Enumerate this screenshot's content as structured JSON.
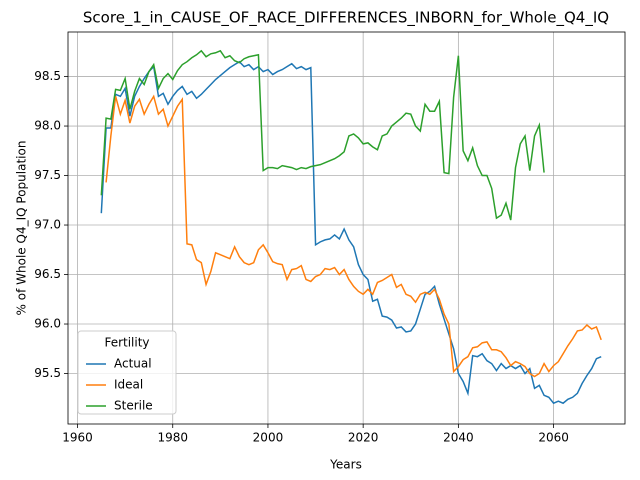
{
  "chart_data": {
    "type": "line",
    "title": "Score_1_in_CAUSE_OF_RACE_DIFFERENCES_INBORN_for_Whole_Q4_IQ",
    "xlabel": "Years",
    "ylabel": "% of Whole Q4_IQ Population",
    "legend_title": "Fertility",
    "legend": "lower left",
    "grid": true,
    "xlim": [
      1958,
      2075
    ],
    "ylim": [
      94.99,
      98.95
    ],
    "xticks": [
      1960,
      1980,
      2000,
      2020,
      2040,
      2060
    ],
    "yticks": [
      95.5,
      {
        "value": 96,
        "label": "96.0"
      },
      96.5,
      {
        "value": 97,
        "label": "97.0"
      },
      97.5,
      {
        "value": 98,
        "label": "98.0"
      },
      98.5
    ],
    "x": [
      1965,
      1966,
      1967,
      1968,
      1969,
      1970,
      1971,
      1972,
      1973,
      1974,
      1975,
      1976,
      1977,
      1978,
      1979,
      1980,
      1981,
      1982,
      1983,
      1984,
      1985,
      1986,
      1987,
      1988,
      1989,
      1990,
      1991,
      1992,
      1993,
      1994,
      1995,
      1996,
      1997,
      1998,
      1999,
      2000,
      2001,
      2002,
      2003,
      2004,
      2005,
      2006,
      2007,
      2008,
      2009,
      2010,
      2011,
      2012,
      2013,
      2014,
      2015,
      2016,
      2017,
      2018,
      2019,
      2020,
      2021,
      2022,
      2023,
      2024,
      2025,
      2026,
      2027,
      2028,
      2029,
      2030,
      2031,
      2032,
      2033,
      2034,
      2035,
      2036,
      2037,
      2038,
      2039,
      2040,
      2041,
      2042,
      2043,
      2044,
      2045,
      2046,
      2047,
      2048,
      2049,
      2050,
      2051,
      2052,
      2053,
      2054,
      2055,
      2056,
      2057,
      2058,
      2059,
      2060,
      2061,
      2062,
      2063,
      2064,
      2065,
      2066,
      2067,
      2068,
      2069,
      2070
    ],
    "series": [
      {
        "name": "Actual",
        "color": "#1f77b4",
        "values": [
          97.12,
          97.98,
          97.98,
          98.32,
          98.3,
          98.38,
          98.1,
          98.3,
          98.4,
          98.48,
          98.55,
          98.6,
          98.3,
          98.33,
          98.22,
          98.3,
          98.36,
          98.4,
          98.32,
          98.35,
          98.28,
          98.32,
          98.37,
          98.42,
          98.47,
          98.51,
          98.55,
          98.59,
          98.62,
          98.65,
          98.6,
          98.62,
          98.57,
          98.6,
          98.55,
          98.57,
          98.52,
          98.55,
          98.57,
          98.6,
          98.63,
          98.58,
          98.6,
          98.57,
          98.59,
          96.8,
          96.83,
          96.85,
          96.86,
          96.9,
          96.86,
          96.96,
          96.85,
          96.78,
          96.6,
          96.5,
          96.45,
          96.23,
          96.25,
          96.08,
          96.07,
          96.04,
          95.96,
          95.97,
          95.92,
          95.93,
          96.0,
          96.15,
          96.3,
          96.33,
          96.38,
          96.2,
          96.05,
          95.9,
          95.75,
          95.5,
          95.42,
          95.3,
          95.68,
          95.67,
          95.7,
          95.63,
          95.6,
          95.53,
          95.6,
          95.55,
          95.58,
          95.55,
          95.58,
          95.5,
          95.55,
          95.35,
          95.38,
          95.28,
          95.26,
          95.2,
          95.22,
          95.2,
          95.24,
          95.26,
          95.3,
          95.4,
          95.48,
          95.55,
          95.65,
          95.67
        ]
      },
      {
        "name": "Ideal",
        "color": "#ff7f0e",
        "values": [
          null,
          97.43,
          97.9,
          98.3,
          98.12,
          98.26,
          98.03,
          98.2,
          98.27,
          98.12,
          98.22,
          98.3,
          98.12,
          98.17,
          98.0,
          98.1,
          98.2,
          98.27,
          96.81,
          96.8,
          96.65,
          96.62,
          96.4,
          96.53,
          96.72,
          96.7,
          96.68,
          96.66,
          96.78,
          96.68,
          96.62,
          96.6,
          96.62,
          96.75,
          96.8,
          96.72,
          96.63,
          96.61,
          96.6,
          96.45,
          96.55,
          96.56,
          96.59,
          96.45,
          96.43,
          96.48,
          96.5,
          96.56,
          96.55,
          96.57,
          96.5,
          96.55,
          96.45,
          96.38,
          96.33,
          96.3,
          96.35,
          96.3,
          96.42,
          96.44,
          96.47,
          96.5,
          96.37,
          96.4,
          96.3,
          96.28,
          96.22,
          96.3,
          96.32,
          96.3,
          96.35,
          96.25,
          96.1,
          96.0,
          95.52,
          95.57,
          95.64,
          95.67,
          95.76,
          95.77,
          95.81,
          95.82,
          95.74,
          95.74,
          95.72,
          95.66,
          95.58,
          95.62,
          95.6,
          95.57,
          95.5,
          95.47,
          95.5,
          95.6,
          95.52,
          95.58,
          95.62,
          95.7,
          95.78,
          95.85,
          95.93,
          95.94,
          95.99,
          95.95,
          95.97,
          95.84
        ]
      },
      {
        "name": "Sterile",
        "color": "#2ca02c",
        "values": [
          97.3,
          98.08,
          98.07,
          98.37,
          98.36,
          98.48,
          98.17,
          98.35,
          98.48,
          98.42,
          98.55,
          98.62,
          98.38,
          98.48,
          98.53,
          98.47,
          98.56,
          98.62,
          98.65,
          98.69,
          98.72,
          98.76,
          98.7,
          98.73,
          98.74,
          98.76,
          98.69,
          98.71,
          98.66,
          98.64,
          98.68,
          98.7,
          98.71,
          98.72,
          97.55,
          97.58,
          97.58,
          97.57,
          97.6,
          97.59,
          97.58,
          97.56,
          97.58,
          97.57,
          97.59,
          97.6,
          97.61,
          97.63,
          97.65,
          97.67,
          97.7,
          97.74,
          97.9,
          97.92,
          97.88,
          97.82,
          97.83,
          97.79,
          97.76,
          97.9,
          97.92,
          98.0,
          98.04,
          98.08,
          98.13,
          98.12,
          98.0,
          97.95,
          98.22,
          98.15,
          98.15,
          98.25,
          97.53,
          97.52,
          98.29,
          98.71,
          97.75,
          97.65,
          97.78,
          97.6,
          97.5,
          97.5,
          97.37,
          97.07,
          97.1,
          97.22,
          97.05,
          97.58,
          97.82,
          97.9,
          97.55,
          97.9,
          98.01,
          97.53,
          null,
          null,
          null,
          null,
          null,
          null,
          null,
          null,
          null,
          null,
          null,
          null
        ]
      }
    ]
  }
}
